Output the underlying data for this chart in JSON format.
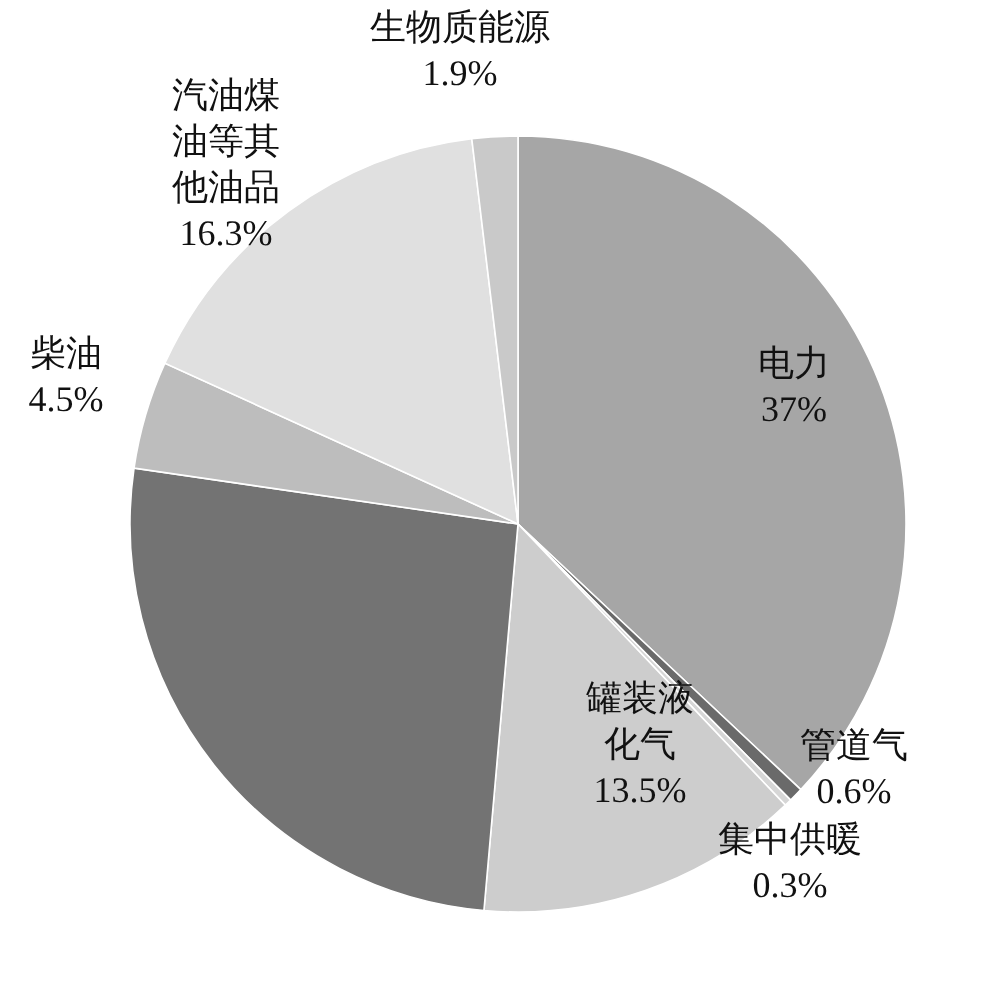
{
  "chart_data": {
    "type": "pie",
    "categories": [
      "电力",
      "管道气",
      "集中供暖",
      "罐装液化气",
      null,
      "柴油",
      "汽油煤油等其他油品",
      "生物质能源"
    ],
    "values": [
      37,
      0.6,
      0.3,
      13.5,
      25.9,
      4.5,
      16.3,
      1.9
    ],
    "colors": [
      "#a6a6a6",
      "#6a6a6a",
      "#d6d6d6",
      "#cdcdcd",
      "#737373",
      "#bdbdbd",
      "#e0e0e0",
      "#c9c9c9"
    ],
    "value_labels": [
      "37%",
      "0.6%",
      "0.3%",
      "13.5%",
      null,
      "4.5%",
      "16.3%",
      "1.9%"
    ]
  }
}
